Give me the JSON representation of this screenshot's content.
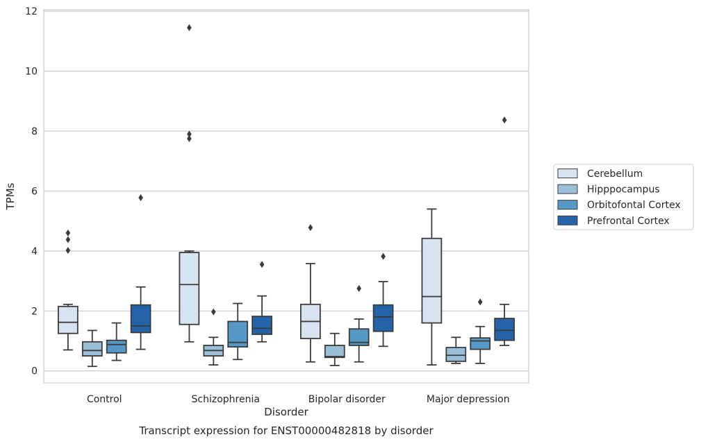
{
  "chart_data": {
    "type": "boxplot",
    "title": "Transcript expression for ENST00000482818 by disorder",
    "xlabel": "Disorder",
    "ylabel": "TPMs",
    "ylim": [
      -0.4,
      12.05
    ],
    "yticks": [
      0,
      2,
      4,
      6,
      8,
      10,
      12
    ],
    "grid": "y",
    "legend_position": "right",
    "categories": [
      "Control",
      "Schizophrenia",
      "Bipolar disorder",
      "Major depression"
    ],
    "series": [
      {
        "name": "Cerebellum",
        "color": "#d6e3f1",
        "boxes": [
          {
            "whislo": 0.7,
            "q1": 1.25,
            "med": 1.62,
            "q3": 2.15,
            "whishi": 2.22,
            "fliers": [
              4.02,
              4.38,
              4.6
            ]
          },
          {
            "whislo": 0.97,
            "q1": 1.55,
            "med": 2.88,
            "q3": 3.95,
            "whishi": 4.0,
            "fliers": [
              7.75,
              7.9,
              11.45
            ]
          },
          {
            "whislo": 0.3,
            "q1": 1.08,
            "med": 1.65,
            "q3": 2.22,
            "whishi": 3.58,
            "fliers": [
              4.78
            ]
          },
          {
            "whislo": 0.2,
            "q1": 1.6,
            "med": 2.48,
            "q3": 4.42,
            "whishi": 5.4,
            "fliers": []
          }
        ]
      },
      {
        "name": "Hipppocampus",
        "color": "#9ac0d8",
        "boxes": [
          {
            "whislo": 0.15,
            "q1": 0.5,
            "med": 0.68,
            "q3": 0.97,
            "whishi": 1.35,
            "fliers": []
          },
          {
            "whislo": 0.2,
            "q1": 0.5,
            "med": 0.68,
            "q3": 0.85,
            "whishi": 1.12,
            "fliers": [
              1.97
            ]
          },
          {
            "whislo": 0.18,
            "q1": 0.45,
            "med": 0.48,
            "q3": 0.85,
            "whishi": 1.25,
            "fliers": []
          },
          {
            "whislo": 0.25,
            "q1": 0.32,
            "med": 0.52,
            "q3": 0.78,
            "whishi": 1.12,
            "fliers": []
          }
        ]
      },
      {
        "name": "Orbitofontal Cortex",
        "color": "#5799c6",
        "boxes": [
          {
            "whislo": 0.35,
            "q1": 0.6,
            "med": 0.88,
            "q3": 1.02,
            "whishi": 1.6,
            "fliers": []
          },
          {
            "whislo": 0.38,
            "q1": 0.8,
            "med": 0.95,
            "q3": 1.65,
            "whishi": 2.25,
            "fliers": []
          },
          {
            "whislo": 0.3,
            "q1": 0.85,
            "med": 0.95,
            "q3": 1.4,
            "whishi": 1.73,
            "fliers": [
              2.75
            ]
          },
          {
            "whislo": 0.25,
            "q1": 0.72,
            "med": 1.0,
            "q3": 1.1,
            "whishi": 1.48,
            "fliers": [
              2.3
            ]
          }
        ]
      },
      {
        "name": "Prefrontal Cortex",
        "color": "#2563a8",
        "boxes": [
          {
            "whislo": 0.72,
            "q1": 1.28,
            "med": 1.5,
            "q3": 2.2,
            "whishi": 2.8,
            "fliers": [
              5.78
            ]
          },
          {
            "whislo": 0.97,
            "q1": 1.22,
            "med": 1.42,
            "q3": 1.82,
            "whishi": 2.5,
            "fliers": [
              3.55
            ]
          },
          {
            "whislo": 0.82,
            "q1": 1.32,
            "med": 1.8,
            "q3": 2.2,
            "whishi": 2.98,
            "fliers": [
              3.82
            ]
          },
          {
            "whislo": 0.85,
            "q1": 1.02,
            "med": 1.35,
            "q3": 1.75,
            "whishi": 2.22,
            "fliers": [
              8.37
            ]
          }
        ]
      }
    ]
  }
}
